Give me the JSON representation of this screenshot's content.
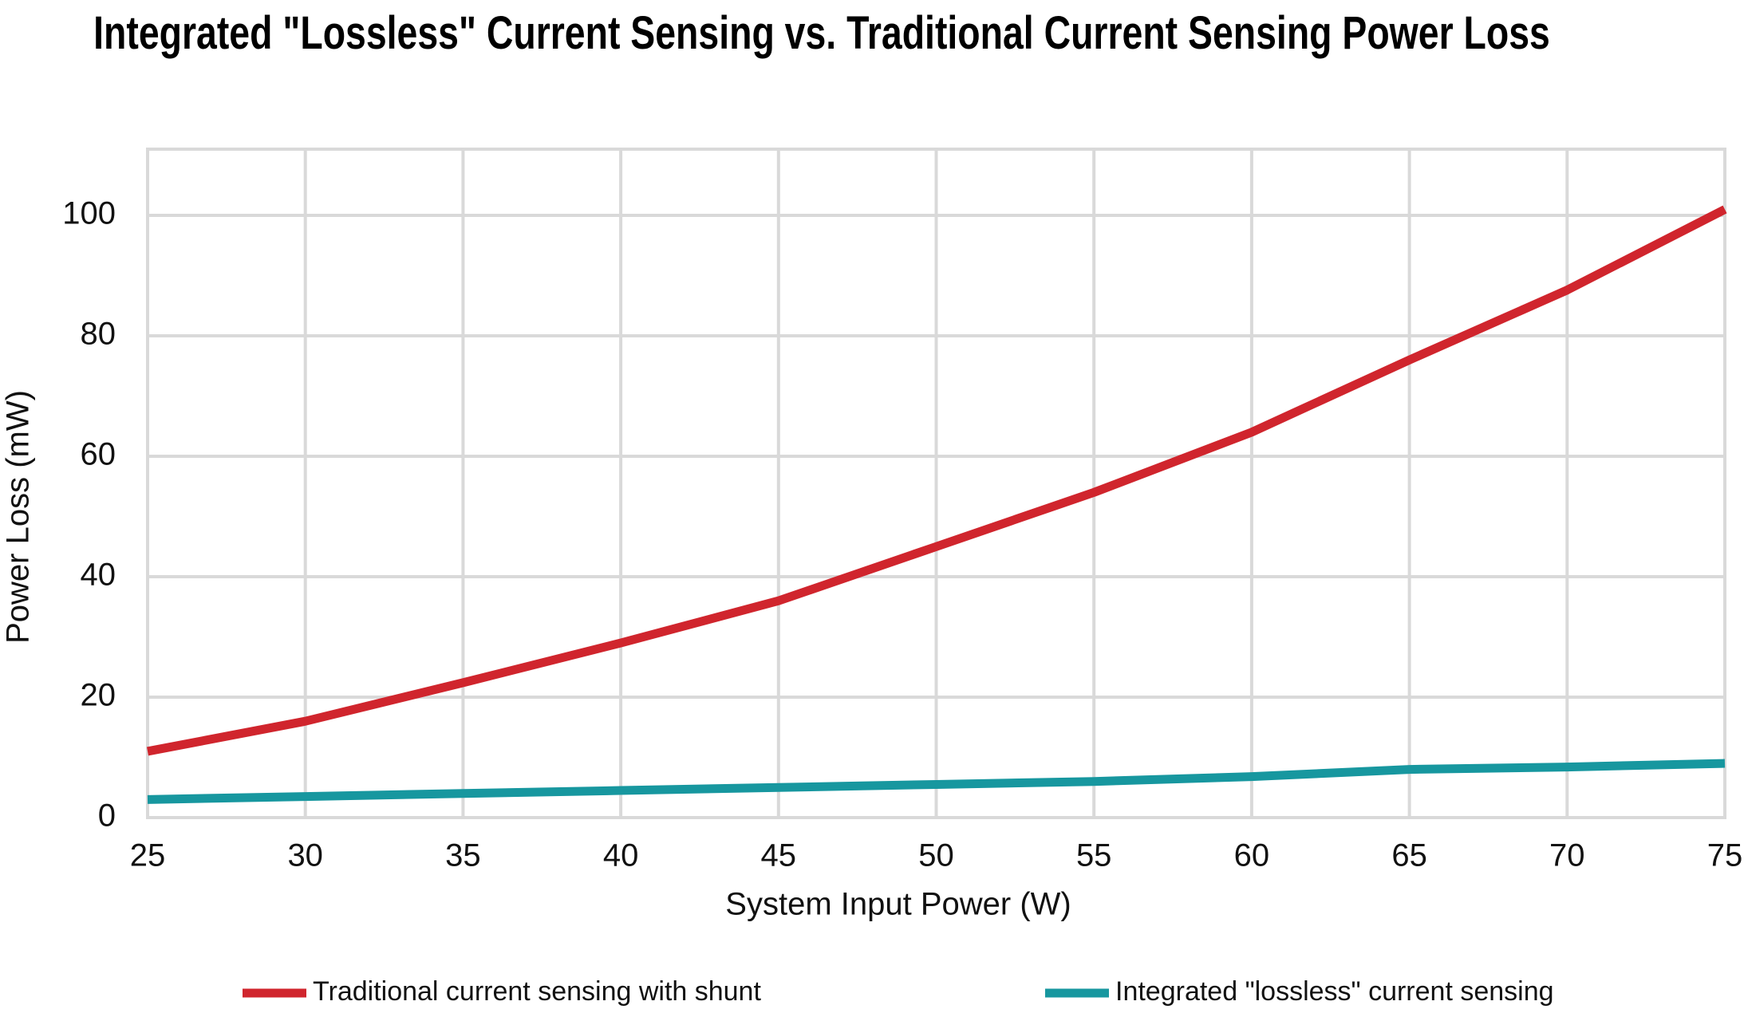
{
  "chart_data": {
    "type": "line",
    "title": "Integrated \"Lossless\" Current Sensing vs. Traditional Current Sensing Power Loss",
    "x_label": "System Input Power (W)",
    "y_label": "Power Loss (mW)",
    "x": [
      25,
      30,
      35,
      40,
      45,
      50,
      55,
      60,
      65,
      70,
      75
    ],
    "series": [
      {
        "name": "Traditional current sensing with shunt",
        "color": "#d0252d",
        "values": [
          11,
          16,
          22.4,
          29,
          36,
          45,
          54,
          64,
          76,
          87.6,
          101
        ]
      },
      {
        "name": "Integrated \"lossless\" current sensing",
        "color": "#17979f",
        "values": [
          3,
          3.5,
          4,
          4.5,
          5,
          5.5,
          6,
          6.8,
          8,
          8.4,
          9
        ]
      }
    ],
    "xlim": [
      25,
      75
    ],
    "xticks": [
      25,
      30,
      35,
      40,
      45,
      50,
      55,
      60,
      65,
      70,
      75
    ],
    "ylim": [
      0,
      111
    ],
    "yticks": [
      0,
      20,
      40,
      60,
      80,
      100
    ],
    "grid": true,
    "legend": "bottom"
  }
}
